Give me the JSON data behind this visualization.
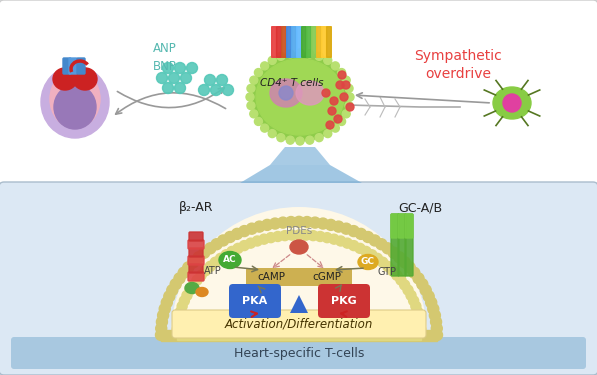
{
  "sympathetic_text": "Sympathetic\noverdrive",
  "sympathetic_color": "#e84040",
  "cd4_text": "CD4⁺ T cells",
  "anp_text": "ANP\nBNP",
  "anp_color": "#55b8b0",
  "heart_specific_text": "Heart-specific T-cells",
  "activation_text": "Activation/Differentiation",
  "beta_ar_text": "β₂-AR",
  "gc_ab_text": "GC-A/B",
  "pdes_text": "PDEs",
  "ac_text": "AC",
  "gc_text": "GC",
  "atp_text": "ATP",
  "gtp_text": "GTP",
  "camp_text": "cAMP",
  "cgmp_text": "cGMP",
  "pka_text": "PKA",
  "pkg_text": "PKG",
  "top_bg": "#f8f8f8",
  "bottom_bg": "#dce8f0",
  "panel_edge": "#cccccc"
}
